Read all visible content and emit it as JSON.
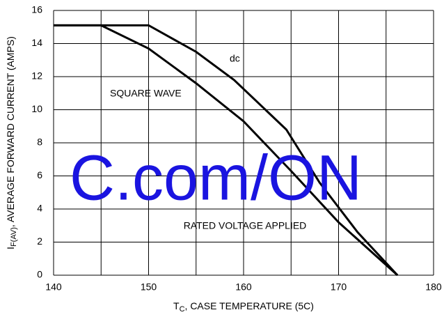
{
  "chart_data": {
    "type": "line",
    "x_label": {
      "symbol": "T",
      "subscript": "C",
      "text": ", CASE TEMPERATURE (5C)"
    },
    "y_label": {
      "symbol": "I",
      "subscript": "F(AV)",
      "text": ", AVERAGE FORWARD CURRENT (AMPS)"
    },
    "series": [
      {
        "name": "dc",
        "color": "#000000",
        "x": [
          140,
          150,
          155,
          159,
          164.5,
          168,
          172,
          176.2
        ],
        "values": [
          15.1,
          15.1,
          13.5,
          11.8,
          8.8,
          5.6,
          2.6,
          0
        ]
      },
      {
        "name": "SQUARE WAVE",
        "color": "#000000",
        "x": [
          140,
          145,
          150,
          155,
          160,
          165,
          170,
          176.2
        ],
        "values": [
          15.1,
          15.1,
          13.7,
          11.6,
          9.3,
          6.3,
          3.2,
          0
        ]
      }
    ],
    "annotations": [
      "RATED VOLTAGE APPLIED"
    ],
    "watermark": "C.com/ON",
    "xlim": [
      140,
      180
    ],
    "xticks": [
      140,
      150,
      160,
      170,
      180
    ],
    "xgrid": [
      140,
      145,
      150,
      155,
      160,
      165,
      170,
      175,
      180
    ],
    "ylim": [
      0,
      16
    ],
    "yticks": [
      0,
      2,
      4,
      6,
      8,
      10,
      12,
      14,
      16
    ],
    "grid": true
  }
}
